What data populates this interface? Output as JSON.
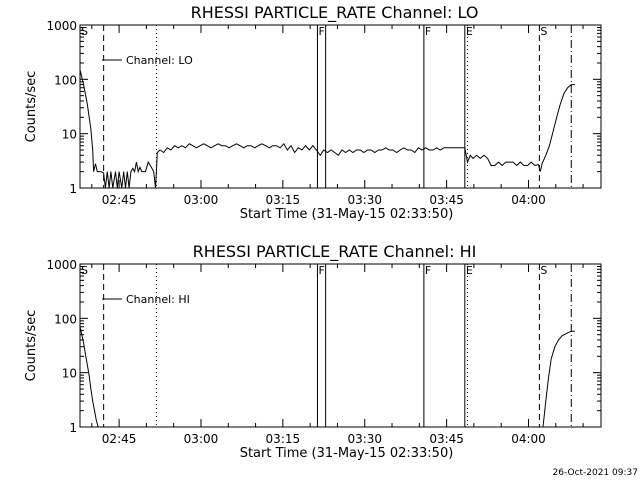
{
  "footer": {
    "date": "26-Oct-2021 09:37"
  },
  "chart_data": [
    {
      "type": "line",
      "title": "RHESSI PARTICLE_RATE Channel: LO",
      "xlabel": "Start Time (31-May-15 02:33:50)",
      "ylabel": "Counts/sec",
      "yscale": "log",
      "ylim": [
        1,
        1000
      ],
      "xlim": [
        2.6306,
        4.2214
      ],
      "xticks": [
        {
          "v": 2.75,
          "label": "02:45"
        },
        {
          "v": 3.0,
          "label": "03:00"
        },
        {
          "v": 3.25,
          "label": "03:15"
        },
        {
          "v": 3.5,
          "label": "03:30"
        },
        {
          "v": 3.75,
          "label": "03:45"
        },
        {
          "v": 4.0,
          "label": "04:00"
        }
      ],
      "yticks": [
        {
          "v": 1,
          "label": "1"
        },
        {
          "v": 10,
          "label": "10"
        },
        {
          "v": 100,
          "label": "100"
        },
        {
          "v": 1000,
          "label": "1000"
        }
      ],
      "legend": {
        "label": "Channel: LO",
        "position": "top-left"
      },
      "markers": [
        {
          "x": 2.7028,
          "label": "S",
          "style": "dashed",
          "show_line": false
        },
        {
          "x": 2.7028,
          "label": "",
          "style": "dashed",
          "show_line": true
        },
        {
          "x": 2.8639,
          "label": "",
          "style": "dotted",
          "show_line": true
        },
        {
          "x": 3.3556,
          "label": "F",
          "style": "solid",
          "show_line": true
        },
        {
          "x": 3.3806,
          "label": "",
          "style": "solid",
          "show_line": true
        },
        {
          "x": 3.6806,
          "label": "F",
          "style": "solid",
          "show_line": true
        },
        {
          "x": 3.8056,
          "label": "E",
          "style": "solid",
          "show_line": true
        },
        {
          "x": 3.8139,
          "label": "",
          "style": "dotted",
          "show_line": true
        },
        {
          "x": 4.0333,
          "label": "S",
          "style": "dashed",
          "show_line": true
        },
        {
          "x": 4.1306,
          "label": "",
          "style": "dashdot",
          "show_line": true
        }
      ],
      "series": [
        {
          "values": [
            [
              2.6306,
              150
            ],
            [
              2.6417,
              80
            ],
            [
              2.6528,
              35
            ],
            [
              2.6639,
              12
            ],
            [
              2.6694,
              5
            ],
            [
              2.6722,
              2
            ],
            [
              2.6778,
              2.8
            ],
            [
              2.6833,
              2
            ],
            [
              2.6944,
              2
            ],
            [
              2.7028,
              1.9
            ],
            [
              2.7083,
              1
            ],
            [
              2.7139,
              2
            ],
            [
              2.7194,
              1
            ],
            [
              2.725,
              2
            ],
            [
              2.7306,
              1
            ],
            [
              2.7389,
              2
            ],
            [
              2.7444,
              1
            ],
            [
              2.75,
              2
            ],
            [
              2.7583,
              1
            ],
            [
              2.7639,
              2
            ],
            [
              2.7694,
              1
            ],
            [
              2.775,
              2
            ],
            [
              2.7806,
              1
            ],
            [
              2.7861,
              2
            ],
            [
              2.7917,
              2.3
            ],
            [
              2.7972,
              2
            ],
            [
              2.8028,
              3
            ],
            [
              2.8083,
              2
            ],
            [
              2.8139,
              2.4
            ],
            [
              2.8194,
              2
            ],
            [
              2.8306,
              2
            ],
            [
              2.8389,
              3
            ],
            [
              2.8472,
              2.5
            ],
            [
              2.8556,
              2
            ],
            [
              2.8611,
              1
            ],
            [
              2.8639,
              2
            ],
            [
              2.8667,
              4.5
            ],
            [
              2.875,
              5
            ],
            [
              2.8861,
              4.5
            ],
            [
              2.8972,
              5.5
            ],
            [
              2.9083,
              5
            ],
            [
              2.9194,
              6
            ],
            [
              2.9306,
              5.5
            ],
            [
              2.9417,
              6
            ],
            [
              2.9528,
              5.5
            ],
            [
              2.9639,
              6.5
            ],
            [
              2.975,
              6
            ],
            [
              2.9861,
              5.5
            ],
            [
              2.9972,
              6
            ],
            [
              3.0083,
              6.5
            ],
            [
              3.0194,
              6
            ],
            [
              3.0306,
              5.5
            ],
            [
              3.0417,
              6
            ],
            [
              3.0528,
              6.5
            ],
            [
              3.0639,
              6
            ],
            [
              3.075,
              6
            ],
            [
              3.0861,
              5.5
            ],
            [
              3.0972,
              6
            ],
            [
              3.1083,
              6.5
            ],
            [
              3.1194,
              6
            ],
            [
              3.1306,
              5.5
            ],
            [
              3.1417,
              6
            ],
            [
              3.1528,
              6
            ],
            [
              3.1639,
              5.5
            ],
            [
              3.175,
              6
            ],
            [
              3.1861,
              6.5
            ],
            [
              3.1972,
              6
            ],
            [
              3.2083,
              5.5
            ],
            [
              3.2194,
              6
            ],
            [
              3.2306,
              6
            ],
            [
              3.2417,
              5.5
            ],
            [
              3.2528,
              6.5
            ],
            [
              3.2639,
              5
            ],
            [
              3.275,
              6
            ],
            [
              3.2861,
              4.5
            ],
            [
              3.2972,
              5.5
            ],
            [
              3.3083,
              5
            ],
            [
              3.3194,
              6
            ],
            [
              3.3306,
              5
            ],
            [
              3.3417,
              6
            ],
            [
              3.3528,
              5
            ],
            [
              3.3639,
              4
            ],
            [
              3.375,
              5
            ],
            [
              3.3861,
              4.5
            ],
            [
              3.3972,
              5
            ],
            [
              3.4083,
              4.5
            ],
            [
              3.4194,
              4
            ],
            [
              3.4306,
              5
            ],
            [
              3.4417,
              4.5
            ],
            [
              3.4528,
              5
            ],
            [
              3.4639,
              4.5
            ],
            [
              3.475,
              5
            ],
            [
              3.4861,
              5
            ],
            [
              3.4972,
              4.5
            ],
            [
              3.5083,
              5
            ],
            [
              3.5194,
              5
            ],
            [
              3.5306,
              4.5
            ],
            [
              3.5417,
              5
            ],
            [
              3.5528,
              5
            ],
            [
              3.5639,
              5.5
            ],
            [
              3.575,
              5
            ],
            [
              3.5861,
              5
            ],
            [
              3.5972,
              4.5
            ],
            [
              3.6083,
              5
            ],
            [
              3.6194,
              5.5
            ],
            [
              3.6306,
              5
            ],
            [
              3.6417,
              5
            ],
            [
              3.6528,
              4.5
            ],
            [
              3.6639,
              5.5
            ],
            [
              3.675,
              5
            ],
            [
              3.6861,
              5.5
            ],
            [
              3.6972,
              5
            ],
            [
              3.7083,
              5
            ],
            [
              3.7194,
              5.5
            ],
            [
              3.7306,
              5
            ],
            [
              3.7417,
              5.5
            ],
            [
              3.7528,
              5.5
            ],
            [
              3.7639,
              5.5
            ],
            [
              3.775,
              5.5
            ],
            [
              3.7861,
              5.5
            ],
            [
              3.7972,
              5.5
            ],
            [
              3.8056,
              5.5
            ],
            [
              3.8139,
              3
            ],
            [
              3.8222,
              4
            ],
            [
              3.8306,
              3.5
            ],
            [
              3.8417,
              4
            ],
            [
              3.8528,
              3.5
            ],
            [
              3.8639,
              4
            ],
            [
              3.875,
              3.5
            ],
            [
              3.8861,
              2.6
            ],
            [
              3.8972,
              2.6
            ],
            [
              3.9083,
              3
            ],
            [
              3.9194,
              2.6
            ],
            [
              3.9306,
              3
            ],
            [
              3.9417,
              3
            ],
            [
              3.9528,
              3
            ],
            [
              3.9639,
              2.6
            ],
            [
              3.975,
              3
            ],
            [
              3.9861,
              2.6
            ],
            [
              3.9972,
              2.6
            ],
            [
              4.0083,
              3
            ],
            [
              4.0194,
              2.6
            ],
            [
              4.0306,
              2.7
            ],
            [
              4.0361,
              2
            ],
            [
              4.0417,
              2.8
            ],
            [
              4.0528,
              4
            ],
            [
              4.0639,
              6
            ],
            [
              4.075,
              11
            ],
            [
              4.0861,
              20
            ],
            [
              4.0972,
              35
            ],
            [
              4.1083,
              55
            ],
            [
              4.1194,
              70
            ],
            [
              4.1306,
              80
            ],
            [
              4.1417,
              80
            ]
          ]
        }
      ]
    },
    {
      "type": "line",
      "title": "RHESSI PARTICLE_RATE Channel: HI",
      "xlabel": "Start Time (31-May-15 02:33:50)",
      "ylabel": "Counts/sec",
      "yscale": "log",
      "ylim": [
        1,
        1000
      ],
      "xlim": [
        2.6306,
        4.2214
      ],
      "xticks": [
        {
          "v": 2.75,
          "label": "02:45"
        },
        {
          "v": 3.0,
          "label": "03:00"
        },
        {
          "v": 3.25,
          "label": "03:15"
        },
        {
          "v": 3.5,
          "label": "03:30"
        },
        {
          "v": 3.75,
          "label": "03:45"
        },
        {
          "v": 4.0,
          "label": "04:00"
        }
      ],
      "yticks": [
        {
          "v": 1,
          "label": "1"
        },
        {
          "v": 10,
          "label": "10"
        },
        {
          "v": 100,
          "label": "100"
        },
        {
          "v": 1000,
          "label": "1000"
        }
      ],
      "legend": {
        "label": "Channel: HI",
        "position": "top-left"
      },
      "markers": [
        {
          "x": 2.7028,
          "label": "S",
          "style": "dashed",
          "show_line": false
        },
        {
          "x": 2.7028,
          "label": "",
          "style": "dashed",
          "show_line": true
        },
        {
          "x": 2.8639,
          "label": "",
          "style": "dotted",
          "show_line": true
        },
        {
          "x": 3.3556,
          "label": "F",
          "style": "solid",
          "show_line": true
        },
        {
          "x": 3.3806,
          "label": "",
          "style": "solid",
          "show_line": true
        },
        {
          "x": 3.6806,
          "label": "F",
          "style": "solid",
          "show_line": true
        },
        {
          "x": 3.8056,
          "label": "E",
          "style": "solid",
          "show_line": true
        },
        {
          "x": 3.8139,
          "label": "",
          "style": "dotted",
          "show_line": true
        },
        {
          "x": 4.0333,
          "label": "S",
          "style": "dashed",
          "show_line": true
        },
        {
          "x": 4.1306,
          "label": "",
          "style": "dashdot",
          "show_line": true
        }
      ],
      "series": [
        {
          "values": [
            [
              2.6306,
              70
            ],
            [
              2.6361,
              50
            ],
            [
              2.6417,
              35
            ],
            [
              2.6472,
              22
            ],
            [
              2.6528,
              14
            ],
            [
              2.6583,
              9
            ],
            [
              2.6639,
              5
            ],
            [
              2.6694,
              3
            ],
            [
              2.675,
              2
            ],
            [
              2.6806,
              1.3
            ],
            [
              2.6861,
              1
            ]
          ]
        },
        {
          "values": [
            [
              4.0444,
              1
            ],
            [
              4.0528,
              3
            ],
            [
              4.0611,
              8
            ],
            [
              4.0694,
              18
            ],
            [
              4.0806,
              30
            ],
            [
              4.0917,
              40
            ],
            [
              4.1028,
              48
            ],
            [
              4.1139,
              52
            ],
            [
              4.1222,
              55
            ],
            [
              4.1306,
              58
            ],
            [
              4.1417,
              58
            ]
          ]
        }
      ]
    }
  ]
}
